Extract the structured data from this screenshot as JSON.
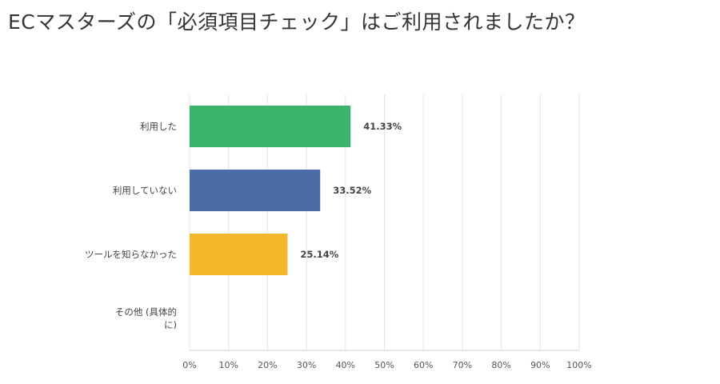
{
  "title": "ECマスターズの「必須項目チェック」はご利用されましたか？",
  "chart_data": {
    "type": "bar",
    "orientation": "horizontal",
    "categories": [
      [
        "利用した"
      ],
      [
        "利用していない"
      ],
      [
        "ツールを知らなかった"
      ],
      [
        "その他 (具体的",
        "に)"
      ]
    ],
    "values": [
      41.33,
      33.52,
      25.14,
      0
    ],
    "value_labels": [
      "41.33%",
      "33.52%",
      "25.14%",
      ""
    ],
    "colors": [
      "#3bb56b",
      "#4a6da8",
      "#f3b829",
      "#cccccc"
    ],
    "xlim": [
      0,
      100
    ],
    "xticks": [
      "0%",
      "10%",
      "20%",
      "30%",
      "40%",
      "50%",
      "60%",
      "70%",
      "80%",
      "90%",
      "100%"
    ],
    "grid": true,
    "legend": "none"
  }
}
